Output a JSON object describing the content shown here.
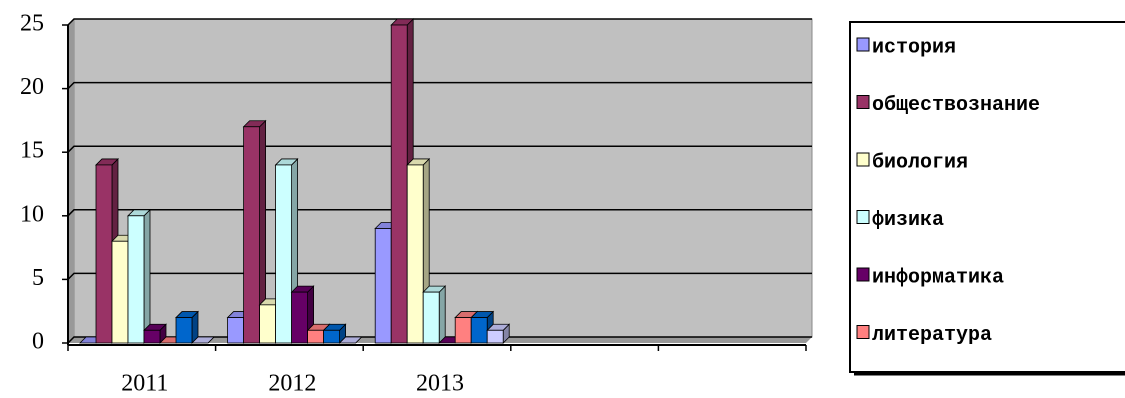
{
  "chart_data": {
    "type": "bar3d",
    "categories": [
      "2011",
      "2012",
      "2013",
      null,
      null
    ],
    "series": [
      {
        "name": "история",
        "color": "#9999ff",
        "values": [
          0,
          2,
          9,
          null,
          null
        ]
      },
      {
        "name": "обществознание",
        "color": "#993366",
        "values": [
          14,
          17,
          25,
          null,
          null
        ]
      },
      {
        "name": "биология",
        "color": "#ffffcc",
        "values": [
          8,
          3,
          14,
          null,
          null
        ]
      },
      {
        "name": "физика",
        "color": "#ccffff",
        "values": [
          10,
          14,
          4,
          null,
          null
        ]
      },
      {
        "name": "информатика",
        "color": "#660066",
        "values": [
          1,
          4,
          0,
          null,
          null
        ]
      },
      {
        "name": "литература",
        "color": "#ff8080",
        "values": [
          0,
          1,
          2,
          null,
          null
        ]
      },
      {
        "color": "#0066cc",
        "values": [
          2,
          1,
          2,
          null,
          null
        ]
      },
      {
        "color": "#ccccff",
        "values": [
          0,
          0,
          1,
          null,
          null
        ]
      }
    ],
    "ylim": [
      0,
      25
    ],
    "yticks": [
      0,
      5,
      10,
      15,
      20,
      25
    ],
    "grid": true,
    "plot_background": "#c0c0c0",
    "legend": "right"
  }
}
